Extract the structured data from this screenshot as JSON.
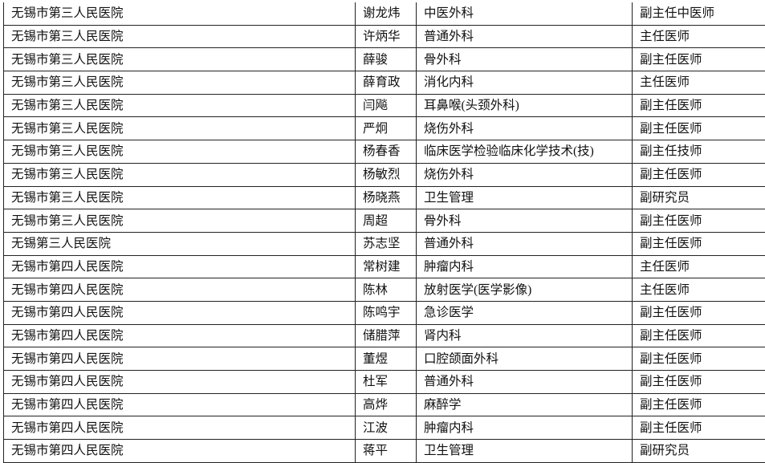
{
  "rows": [
    [
      "无锡市第三人民医院",
      "谢龙炜",
      "中医外科",
      "副主任中医师"
    ],
    [
      "无锡市第三人民医院",
      "许炳华",
      "普通外科",
      "主任医师"
    ],
    [
      "无锡市第三人民医院",
      "薛骏",
      "骨外科",
      "副主任医师"
    ],
    [
      "无锡市第三人民医院",
      "薛育政",
      "消化内科",
      "主任医师"
    ],
    [
      "无锡市第三人民医院",
      "闫飚",
      "耳鼻喉(头颈外科)",
      "副主任医师"
    ],
    [
      "无锡市第三人民医院",
      "严炯",
      "烧伤外科",
      "副主任医师"
    ],
    [
      "无锡市第三人民医院",
      "杨春香",
      "临床医学检验临床化学技术(技)",
      "副主任技师"
    ],
    [
      "无锡市第三人民医院",
      "杨敏烈",
      "烧伤外科",
      "副主任医师"
    ],
    [
      "无锡市第三人民医院",
      "杨晓燕",
      "卫生管理",
      "副研究员"
    ],
    [
      "无锡市第三人民医院",
      "周超",
      "骨外科",
      "副主任医师"
    ],
    [
      "无锡第三人民医院",
      "苏志坚",
      "普通外科",
      "副主任医师"
    ],
    [
      "无锡市第四人民医院",
      "常树建",
      "肿瘤内科",
      "主任医师"
    ],
    [
      "无锡市第四人民医院",
      "陈林",
      "放射医学(医学影像)",
      "主任医师"
    ],
    [
      "无锡市第四人民医院",
      "陈鸣宇",
      "急诊医学",
      "副主任医师"
    ],
    [
      "无锡市第四人民医院",
      "储腊萍",
      "肾内科",
      "副主任医师"
    ],
    [
      "无锡市第四人民医院",
      "董煜",
      "口腔颌面外科",
      "副主任医师"
    ],
    [
      "无锡市第四人民医院",
      "杜军",
      "普通外科",
      "副主任医师"
    ],
    [
      "无锡市第四人民医院",
      "高烨",
      "麻醉学",
      "副主任医师"
    ],
    [
      "无锡市第四人民医院",
      "江波",
      "肿瘤内科",
      "副主任医师"
    ],
    [
      "无锡市第四人民医院",
      "蒋平",
      "卫生管理",
      "副研究员"
    ]
  ]
}
